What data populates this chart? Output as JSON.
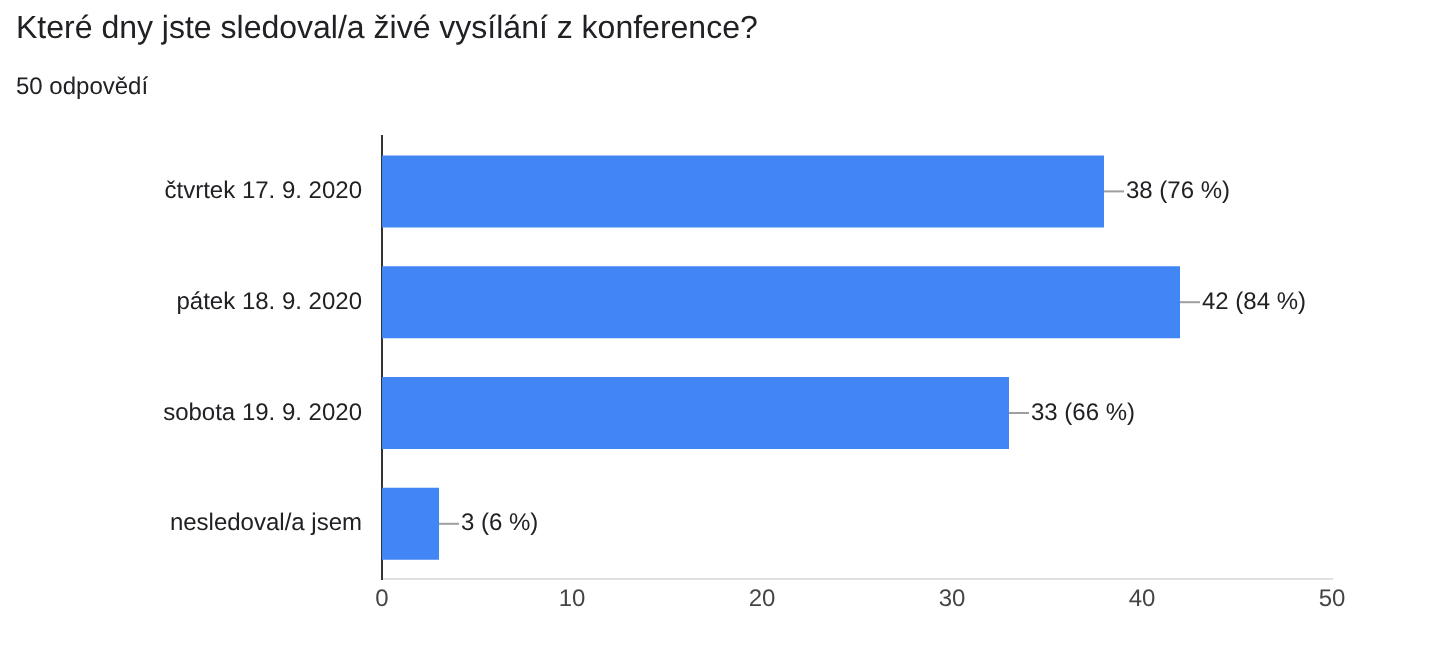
{
  "chart_data": {
    "type": "bar",
    "orientation": "horizontal",
    "title": "Které dny jste sledoval/a živé vysílání z konference?",
    "subtitle": "50 odpovědí",
    "categories": [
      "čtvrtek 17. 9. 2020",
      "pátek 18. 9. 2020",
      "sobota 19. 9. 2020",
      "nesledoval/a jsem"
    ],
    "values": [
      38,
      42,
      33,
      3
    ],
    "value_labels": [
      "38 (76 %)",
      "42 (84 %)",
      "33 (66 %)",
      "3 (6 %)"
    ],
    "color": "#4285f4",
    "xlim": [
      0,
      50
    ],
    "xticks": [
      0,
      10,
      20,
      30,
      40,
      50
    ],
    "grid": false,
    "legend": false
  }
}
